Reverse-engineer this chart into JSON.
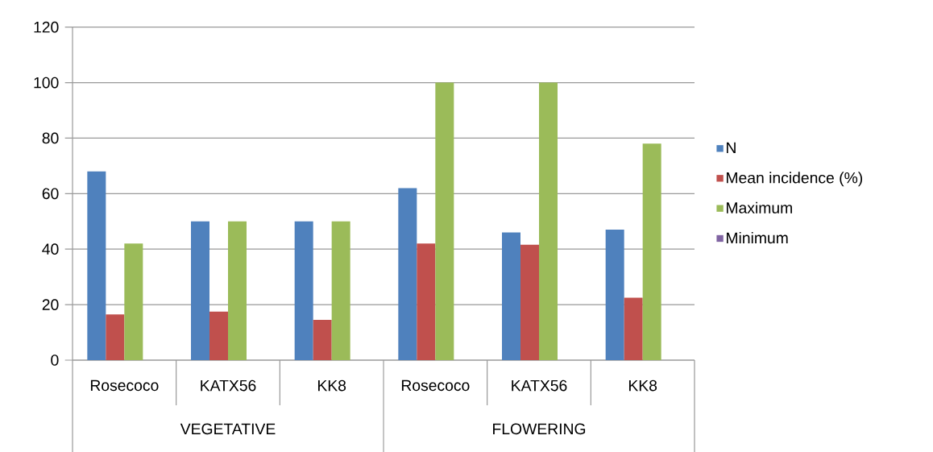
{
  "chart_data": {
    "type": "bar",
    "categories": [
      "Rosecoco",
      "KATX56",
      "KK8",
      "Rosecoco",
      "KATX56",
      "KK8"
    ],
    "series": [
      {
        "name": "N",
        "color": "#4f81bd",
        "values": [
          68,
          50,
          50,
          62,
          46,
          47
        ]
      },
      {
        "name": "Mean incidence (%)",
        "color": "#c0504d",
        "values": [
          16.5,
          17.5,
          14.5,
          42,
          41.6,
          22.5
        ]
      },
      {
        "name": "Maximum",
        "color": "#9bbb59",
        "values": [
          42,
          50,
          50,
          100,
          100,
          78
        ]
      },
      {
        "name": "Minimum",
        "color": "#8064a2",
        "values": [
          0,
          0,
          0,
          0,
          0,
          0
        ]
      }
    ],
    "ylim": [
      0,
      120
    ],
    "yticks": [
      0,
      20,
      40,
      60,
      80,
      100,
      120
    ],
    "grid": "y",
    "legend": "right",
    "annotations": [
      "VEGETATIVE",
      "FLOWERING"
    ]
  }
}
